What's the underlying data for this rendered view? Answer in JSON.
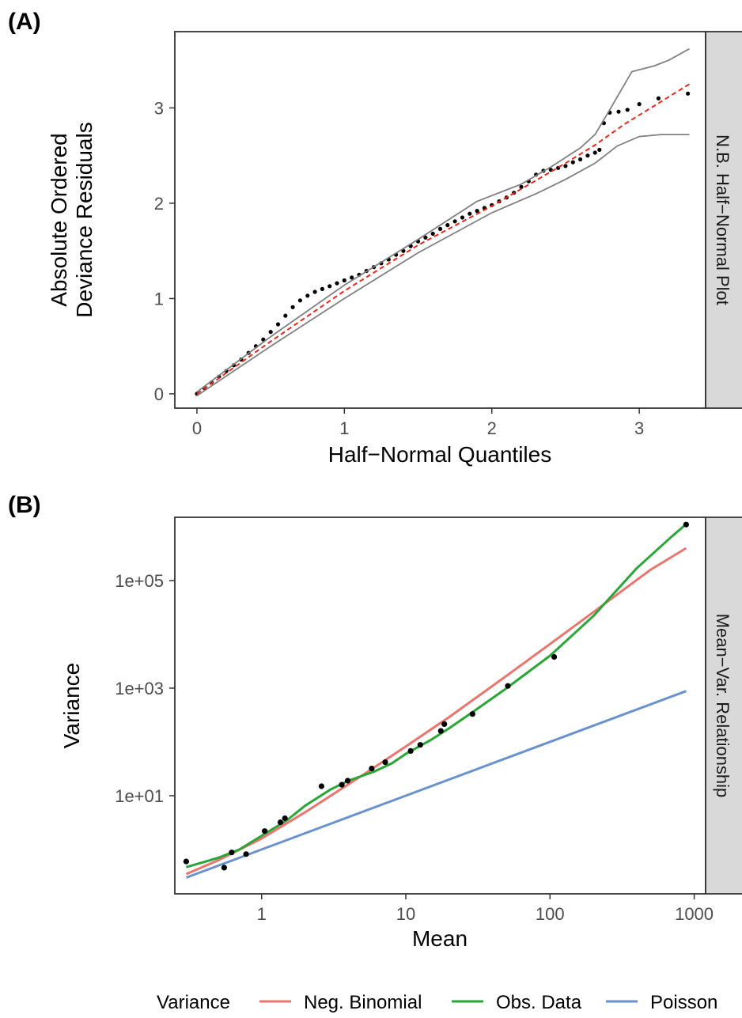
{
  "chart_data": [
    {
      "type": "scatter",
      "panel_tag": "(A)",
      "strip_label": "N.B. Half−Normal Plot",
      "xlabel": "Half−Normal Quantiles",
      "ylabel_lines": [
        "Absolute Ordered",
        "Deviance Residuals"
      ],
      "xlim": [
        -0.15,
        3.45
      ],
      "ylim": [
        -0.15,
        3.8
      ],
      "xticks": [
        0,
        1,
        2,
        3
      ],
      "xtick_labels": [
        "0",
        "1",
        "2",
        "3"
      ],
      "yticks": [
        0,
        1,
        2,
        3
      ],
      "ytick_labels": [
        "0",
        "1",
        "2",
        "3"
      ],
      "grid": false,
      "series": [
        {
          "role": "points",
          "color": "#000000",
          "x": [
            0.0,
            0.05,
            0.1,
            0.15,
            0.2,
            0.25,
            0.3,
            0.35,
            0.4,
            0.45,
            0.5,
            0.55,
            0.6,
            0.65,
            0.7,
            0.75,
            0.8,
            0.85,
            0.9,
            0.95,
            1.0,
            1.05,
            1.1,
            1.15,
            1.2,
            1.25,
            1.3,
            1.35,
            1.4,
            1.45,
            1.5,
            1.55,
            1.6,
            1.65,
            1.7,
            1.75,
            1.8,
            1.85,
            1.9,
            1.95,
            2.0,
            2.05,
            2.1,
            2.15,
            2.2,
            2.25,
            2.3,
            2.35,
            2.4,
            2.45,
            2.5,
            2.55,
            2.6,
            2.65,
            2.7,
            2.73,
            2.76,
            2.8,
            2.86,
            2.92,
            3.0,
            3.13,
            3.33
          ],
          "y": [
            0.0,
            0.06,
            0.12,
            0.18,
            0.24,
            0.3,
            0.36,
            0.43,
            0.5,
            0.57,
            0.65,
            0.73,
            0.82,
            0.91,
            0.98,
            1.03,
            1.07,
            1.1,
            1.13,
            1.16,
            1.19,
            1.22,
            1.25,
            1.29,
            1.33,
            1.37,
            1.41,
            1.46,
            1.5,
            1.55,
            1.6,
            1.64,
            1.68,
            1.73,
            1.77,
            1.81,
            1.85,
            1.89,
            1.92,
            1.95,
            1.98,
            2.02,
            2.06,
            2.11,
            2.17,
            2.23,
            2.3,
            2.34,
            2.35,
            2.37,
            2.39,
            2.43,
            2.46,
            2.5,
            2.53,
            2.56,
            2.84,
            2.95,
            2.96,
            2.98,
            3.04,
            3.1,
            3.15
          ]
        },
        {
          "role": "envelope-median",
          "color": "#e8281c",
          "dashed": true,
          "x": [
            0.0,
            0.5,
            1.0,
            1.5,
            2.0,
            2.3,
            2.5,
            2.7,
            2.9,
            3.1,
            3.34
          ],
          "y": [
            0.0,
            0.55,
            1.08,
            1.56,
            1.97,
            2.24,
            2.42,
            2.61,
            2.83,
            3.02,
            3.25
          ]
        },
        {
          "role": "envelope-upper",
          "color": "#808080",
          "x": [
            0.0,
            0.5,
            1.0,
            1.5,
            1.9,
            2.2,
            2.4,
            2.6,
            2.7,
            2.8,
            2.95,
            3.1,
            3.2,
            3.34
          ],
          "y": [
            0.02,
            0.6,
            1.14,
            1.62,
            2.02,
            2.2,
            2.38,
            2.58,
            2.72,
            2.98,
            3.38,
            3.44,
            3.5,
            3.62
          ]
        },
        {
          "role": "envelope-lower",
          "color": "#808080",
          "x": [
            0.0,
            0.5,
            0.75,
            1.0,
            1.5,
            2.0,
            2.3,
            2.5,
            2.7,
            2.85,
            3.0,
            3.15,
            3.34
          ],
          "y": [
            -0.02,
            0.5,
            0.75,
            1.0,
            1.48,
            1.9,
            2.1,
            2.25,
            2.42,
            2.6,
            2.7,
            2.72,
            2.72
          ]
        }
      ]
    },
    {
      "type": "scatter",
      "panel_tag": "(B)",
      "strip_label": "Mean−Var. Relationship",
      "xlabel": "Mean",
      "ylabel": "Variance",
      "x_scale": "log10",
      "y_scale": "log10",
      "xlim": [
        0.25,
        1200
      ],
      "ylim": [
        0.15,
        1500000
      ],
      "xticks": [
        1,
        10,
        100,
        1000
      ],
      "xtick_labels": [
        "1",
        "10",
        "100",
        "1000"
      ],
      "yticks": [
        10,
        1000,
        100000
      ],
      "ytick_labels": [
        "1e+01",
        "1e+03",
        "1e+05"
      ],
      "grid": false,
      "legend": {
        "title": "Variance",
        "placement": "bottom",
        "entries": [
          {
            "label": "Neg. Binomial",
            "color": "#e8766f"
          },
          {
            "label": "Obs. Data",
            "color": "#2aa637"
          },
          {
            "label": "Poisson",
            "color": "#6a92cc"
          }
        ]
      },
      "points": {
        "color": "#000000",
        "x": [
          0.3,
          0.55,
          0.62,
          0.78,
          1.05,
          1.35,
          1.45,
          2.6,
          3.6,
          3.95,
          5.8,
          7.2,
          10.8,
          12.6,
          17.5,
          18.5,
          29.0,
          51.0,
          107.0,
          880.0
        ],
        "y": [
          0.6,
          0.46,
          0.88,
          0.82,
          2.2,
          3.2,
          3.8,
          15.0,
          16.0,
          19.0,
          32.0,
          42.0,
          68.0,
          88.0,
          160.0,
          215.0,
          330.0,
          1100.0,
          3800.0,
          1100000.0
        ]
      },
      "series": [
        {
          "name": "Neg. Binomial",
          "color": "#e8766f",
          "x": [
            0.3,
            0.5,
            1.0,
            2.0,
            5.0,
            10.0,
            20.0,
            50.0,
            100.0,
            200.0,
            500.0,
            880.0
          ],
          "y": [
            0.35,
            0.63,
            1.6,
            4.9,
            24.0,
            82.0,
            290.0,
            1700.0,
            6600.0,
            26000.0,
            160000.0,
            400000.0
          ]
        },
        {
          "name": "Obs. Data",
          "color": "#2aa637",
          "x": [
            0.3,
            0.5,
            0.7,
            1.0,
            1.5,
            2.0,
            3.0,
            4.0,
            6.0,
            8.0,
            10.0,
            15.0,
            20.0,
            30.0,
            50.0,
            100.0,
            200.0,
            400.0,
            700.0,
            880.0
          ],
          "y": [
            0.47,
            0.7,
            1.0,
            1.8,
            3.5,
            6.5,
            13.0,
            19.0,
            28.0,
            40.0,
            60.0,
            110.0,
            180.0,
            380.0,
            1000.0,
            4000.0,
            22000.0,
            170000.0,
            660000.0,
            1120000.0
          ]
        },
        {
          "name": "Poisson",
          "color": "#6a92cc",
          "x": [
            0.3,
            880.0
          ],
          "y": [
            0.3,
            880.0
          ]
        }
      ]
    }
  ]
}
